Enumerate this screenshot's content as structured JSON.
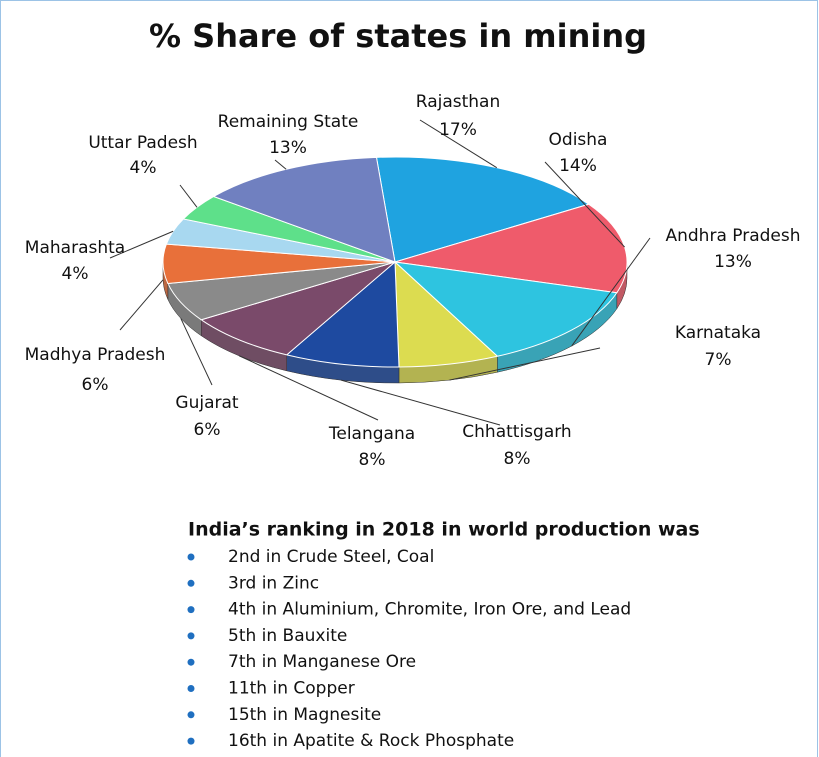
{
  "chart_data": {
    "type": "pie",
    "title": "% Share of states in mining",
    "categories": [
      "Rajasthan",
      "Odisha",
      "Andhra Pradesh",
      "Karnataka",
      "Chhattisgarh",
      "Telangana",
      "Gujarat",
      "Madhya Pradesh",
      "Maharashta",
      "Uttar Padesh",
      "Remaining State"
    ],
    "values": [
      17,
      14,
      13,
      7,
      8,
      8,
      6,
      6,
      4,
      4,
      13
    ],
    "value_labels": [
      "17%",
      "14%",
      "13%",
      "7%",
      "8%",
      "8%",
      "6%",
      "6%",
      "4%",
      "4%",
      "13%"
    ],
    "colors": [
      "#1fa3e0",
      "#ef5b6b",
      "#2ec4e0",
      "#dcdc50",
      "#1e4aa0",
      "#7a4a6a",
      "#8a8a8a",
      "#e8703a",
      "#a8d8f0",
      "#5ee08a",
      "#7080c0"
    ]
  },
  "ranking": {
    "heading": "India’s ranking in 2018 in world production was",
    "items": [
      "2nd in Crude Steel, Coal",
      "3rd in Zinc",
      "4th in Aluminium, Chromite, Iron Ore, and Lead",
      "5th in Bauxite",
      "7th in Manganese Ore",
      "11th in Copper",
      "15th in Magnesite",
      "16th in Apatite & Rock Phosphate"
    ]
  }
}
